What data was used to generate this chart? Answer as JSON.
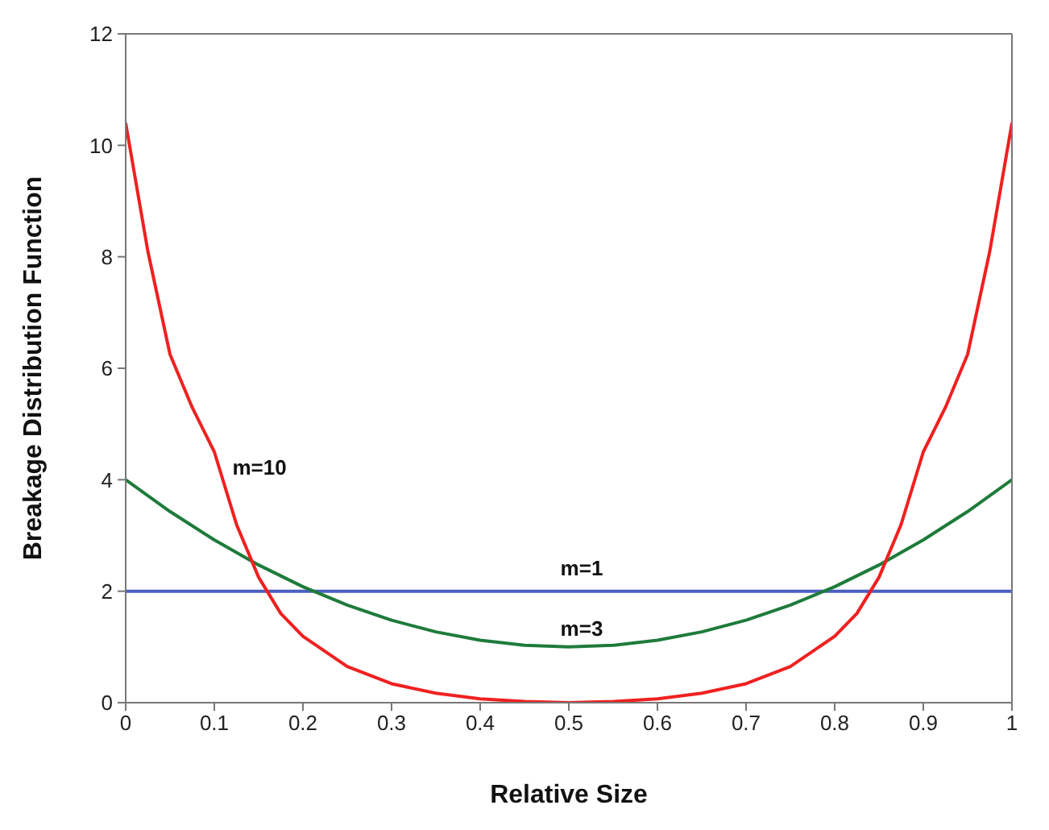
{
  "chart_data": {
    "type": "line",
    "xlabel": "Relative Size",
    "ylabel": "Breakage Distribution Function",
    "xlim": [
      0,
      1
    ],
    "xticks": [
      0,
      0.1,
      0.2,
      0.3,
      0.4,
      0.5,
      0.6,
      0.7,
      0.8,
      0.9,
      1
    ],
    "ylim": [
      0,
      12
    ],
    "yticks": [
      0,
      2,
      4,
      6,
      8,
      10,
      12
    ],
    "grid": false,
    "legend": false,
    "marker": "none",
    "line_style": "solid",
    "series": [
      {
        "name": "m=1",
        "color": "#4a5fc1",
        "x": [
          0,
          0.25,
          0.5,
          0.75,
          1
        ],
        "values": [
          2,
          2,
          2,
          2,
          2
        ]
      },
      {
        "name": "m=3",
        "color": "#1e7b3a",
        "x": [
          0,
          0.05,
          0.1,
          0.15,
          0.2,
          0.25,
          0.3,
          0.35,
          0.4,
          0.45,
          0.5,
          0.55,
          0.6,
          0.65,
          0.7,
          0.75,
          0.8,
          0.85,
          0.9,
          0.95,
          1
        ],
        "values": [
          4,
          3.43,
          2.92,
          2.47,
          2.08,
          1.75,
          1.48,
          1.27,
          1.12,
          1.03,
          1,
          1.03,
          1.12,
          1.27,
          1.48,
          1.75,
          2.08,
          2.47,
          2.92,
          3.43,
          4
        ]
      },
      {
        "name": "m=10",
        "color": "#f02020",
        "x": [
          0,
          0.025,
          0.05,
          0.075,
          0.1,
          0.125,
          0.15,
          0.175,
          0.2,
          0.25,
          0.3,
          0.35,
          0.4,
          0.45,
          0.5,
          0.55,
          0.6,
          0.65,
          0.7,
          0.75,
          0.8,
          0.825,
          0.85,
          0.875,
          0.9,
          0.925,
          0.95,
          0.975,
          1
        ],
        "values": [
          10.4,
          8.1,
          6.25,
          5.3,
          4.5,
          3.2,
          2.25,
          1.6,
          1.19,
          0.65,
          0.34,
          0.17,
          0.07,
          0.02,
          0,
          0.02,
          0.07,
          0.17,
          0.34,
          0.65,
          1.19,
          1.6,
          2.25,
          3.2,
          4.5,
          5.3,
          6.25,
          8.1,
          10.4
        ]
      }
    ]
  }
}
